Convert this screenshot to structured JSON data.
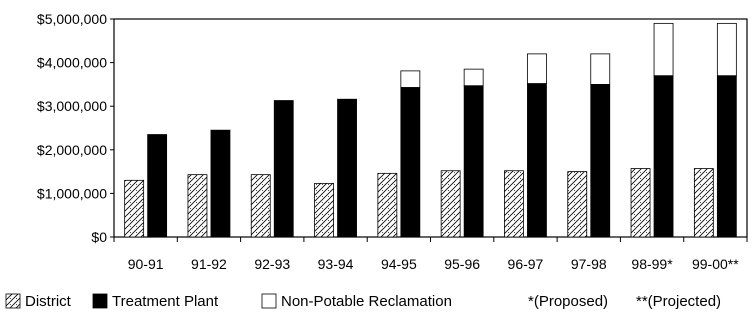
{
  "chart_data": {
    "type": "bar",
    "stacked": true,
    "title": "",
    "xlabel": "",
    "ylabel": "",
    "ylim": [
      0,
      5000000
    ],
    "y_ticks": [
      0,
      1000000,
      2000000,
      3000000,
      4000000,
      5000000
    ],
    "y_tick_labels": [
      "$0",
      "$1,000,000",
      "$2,000,000",
      "$3,000,000",
      "$4,000,000",
      "$5,000,000"
    ],
    "grid": false,
    "legend_position": "bottom",
    "categories": [
      "90-91",
      "91-92",
      "92-93",
      "93-94",
      "94-95",
      "95-96",
      "96-97",
      "97-98",
      "98-99*",
      "99-00**"
    ],
    "groups": [
      {
        "name": "District",
        "pattern": "diagonal-hatch",
        "color": "#ffffff",
        "values": [
          1300000,
          1430000,
          1430000,
          1230000,
          1460000,
          1520000,
          1520000,
          1500000,
          1570000,
          1570000
        ]
      },
      {
        "stack_series": [
          {
            "name": "Treatment Plant",
            "color": "#000000",
            "values": [
              2350000,
              2450000,
              3130000,
              3160000,
              3430000,
              3470000,
              3520000,
              3500000,
              3700000,
              3700000
            ]
          },
          {
            "name": "Non-Potable Reclamation",
            "color": "#ffffff",
            "values": [
              0,
              0,
              0,
              0,
              380000,
              380000,
              680000,
              700000,
              1200000,
              1200000
            ]
          }
        ]
      }
    ],
    "notes": [
      "*(Proposed)",
      "**(Projected)"
    ]
  },
  "legend": {
    "items": [
      {
        "label": "District",
        "swatch": "hatch"
      },
      {
        "label": "Treatment Plant",
        "swatch": "#000000"
      },
      {
        "label": "Non-Potable Reclamation",
        "swatch": "#ffffff"
      }
    ],
    "notes": [
      "*(Proposed)",
      "**(Projected)"
    ]
  }
}
